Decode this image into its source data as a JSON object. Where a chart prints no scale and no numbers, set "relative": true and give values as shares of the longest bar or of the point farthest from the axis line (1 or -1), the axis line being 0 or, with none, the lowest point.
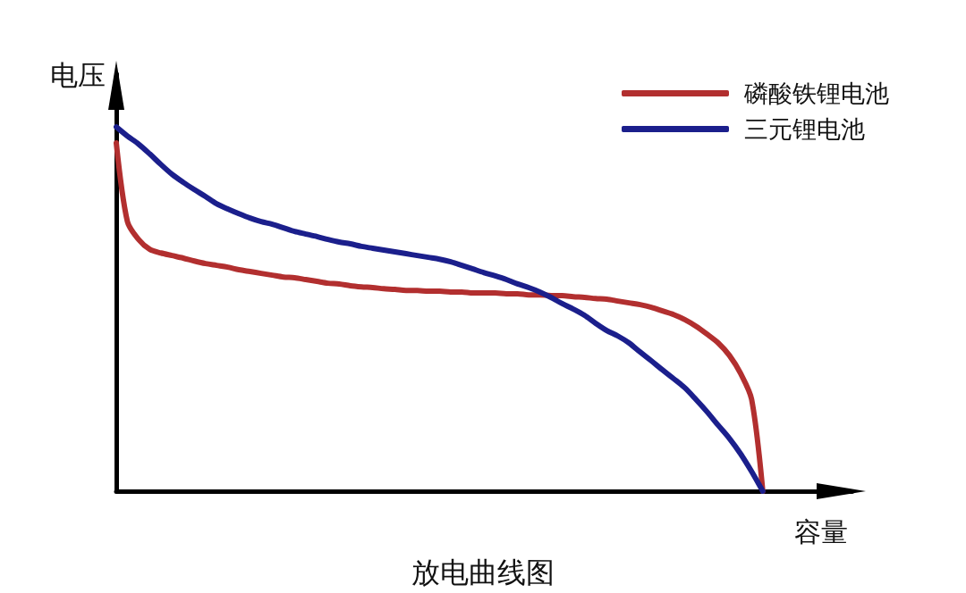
{
  "chart_data": {
    "type": "line",
    "title": "放电曲线图",
    "xlabel": "容量",
    "ylabel": "电压",
    "relative": true,
    "legend": "top right",
    "marker": "none",
    "categories": [
      null,
      null,
      null,
      null,
      null,
      null,
      null,
      null,
      null,
      null,
      null,
      null,
      null,
      null,
      null,
      null,
      null,
      null,
      null,
      null,
      null,
      null,
      null,
      null,
      null,
      null,
      null,
      null,
      null,
      null,
      null,
      null,
      null,
      null,
      null,
      null,
      null,
      null,
      null,
      null,
      null,
      null,
      null,
      null,
      null,
      null,
      null,
      null,
      null,
      null,
      null,
      null,
      null,
      null,
      null,
      null,
      null,
      null,
      null,
      null,
      null,
      null,
      null,
      null,
      null,
      null,
      null
    ],
    "series": [
      {
        "name": "磷酸铁锂电池",
        "color": "#b22f2f",
        "values": [
          0.956,
          0.74,
          0.691,
          0.664,
          0.654,
          0.647,
          0.64,
          0.632,
          0.625,
          0.62,
          0.615,
          0.608,
          0.603,
          0.598,
          0.593,
          0.588,
          0.586,
          0.581,
          0.576,
          0.571,
          0.569,
          0.564,
          0.561,
          0.559,
          0.556,
          0.554,
          0.551,
          0.551,
          0.549,
          0.549,
          0.547,
          0.547,
          0.544,
          0.544,
          0.544,
          0.542,
          0.542,
          0.539,
          0.539,
          0.537,
          0.537,
          0.534,
          0.532,
          0.529,
          0.527,
          0.522,
          0.517,
          0.512,
          0.505,
          0.495,
          0.485,
          0.471,
          0.453,
          0.431,
          0.407,
          0.373,
          0.324,
          0.252,
          0,
          null,
          null,
          null,
          null,
          null,
          null,
          null,
          null
        ]
      },
      {
        "name": "三元锂电池",
        "color": "#1b1f8c",
        "values": [
          1,
          0.975,
          0.953,
          0.926,
          0.897,
          0.87,
          0.848,
          0.828,
          0.809,
          0.789,
          0.775,
          0.762,
          0.75,
          0.74,
          0.733,
          0.723,
          0.713,
          0.706,
          0.699,
          0.691,
          0.684,
          0.679,
          0.672,
          0.667,
          0.662,
          0.657,
          0.652,
          0.647,
          0.642,
          0.637,
          0.63,
          0.62,
          0.61,
          0.6,
          0.591,
          0.581,
          0.569,
          0.559,
          0.547,
          0.532,
          0.515,
          0.5,
          0.483,
          0.461,
          0.441,
          0.426,
          0.407,
          0.382,
          0.358,
          0.333,
          0.309,
          0.284,
          0.252,
          0.218,
          0.181,
          0.145,
          0.103,
          0.054,
          0,
          null,
          null,
          null,
          null,
          null,
          null,
          null,
          null
        ]
      }
    ]
  }
}
